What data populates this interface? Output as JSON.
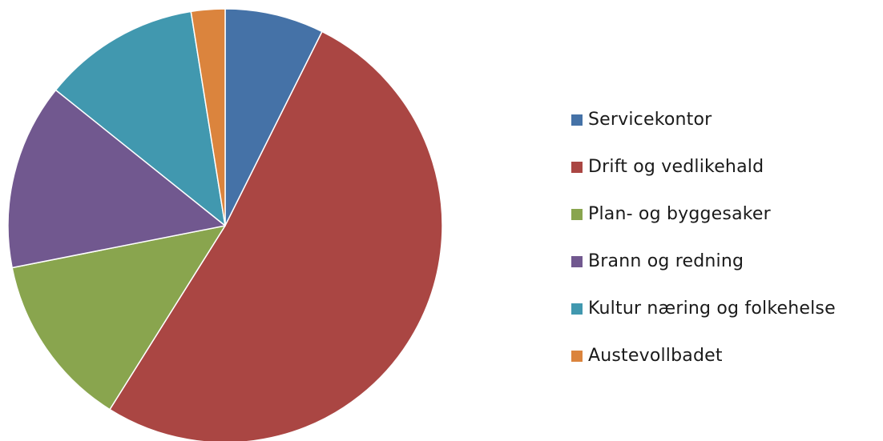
{
  "chart_data": {
    "type": "pie",
    "title": "",
    "start_angle_deg": 0,
    "direction": "clockwise",
    "legend_position": "right",
    "series": [
      {
        "values": [
          7.6,
          53.2,
          13.4,
          14.3,
          12.1,
          2.6
        ]
      }
    ],
    "categories": [
      "Servicekontor",
      "Drift og vedlikehald",
      "Plan- og byggesaker",
      "Brann og redning",
      "Kultur næring og folkehelse",
      "Austevollbadet"
    ],
    "colors": [
      "#4572A7",
      "#AA4643",
      "#89A54E",
      "#71588F",
      "#4198AF",
      "#DB843D"
    ]
  }
}
